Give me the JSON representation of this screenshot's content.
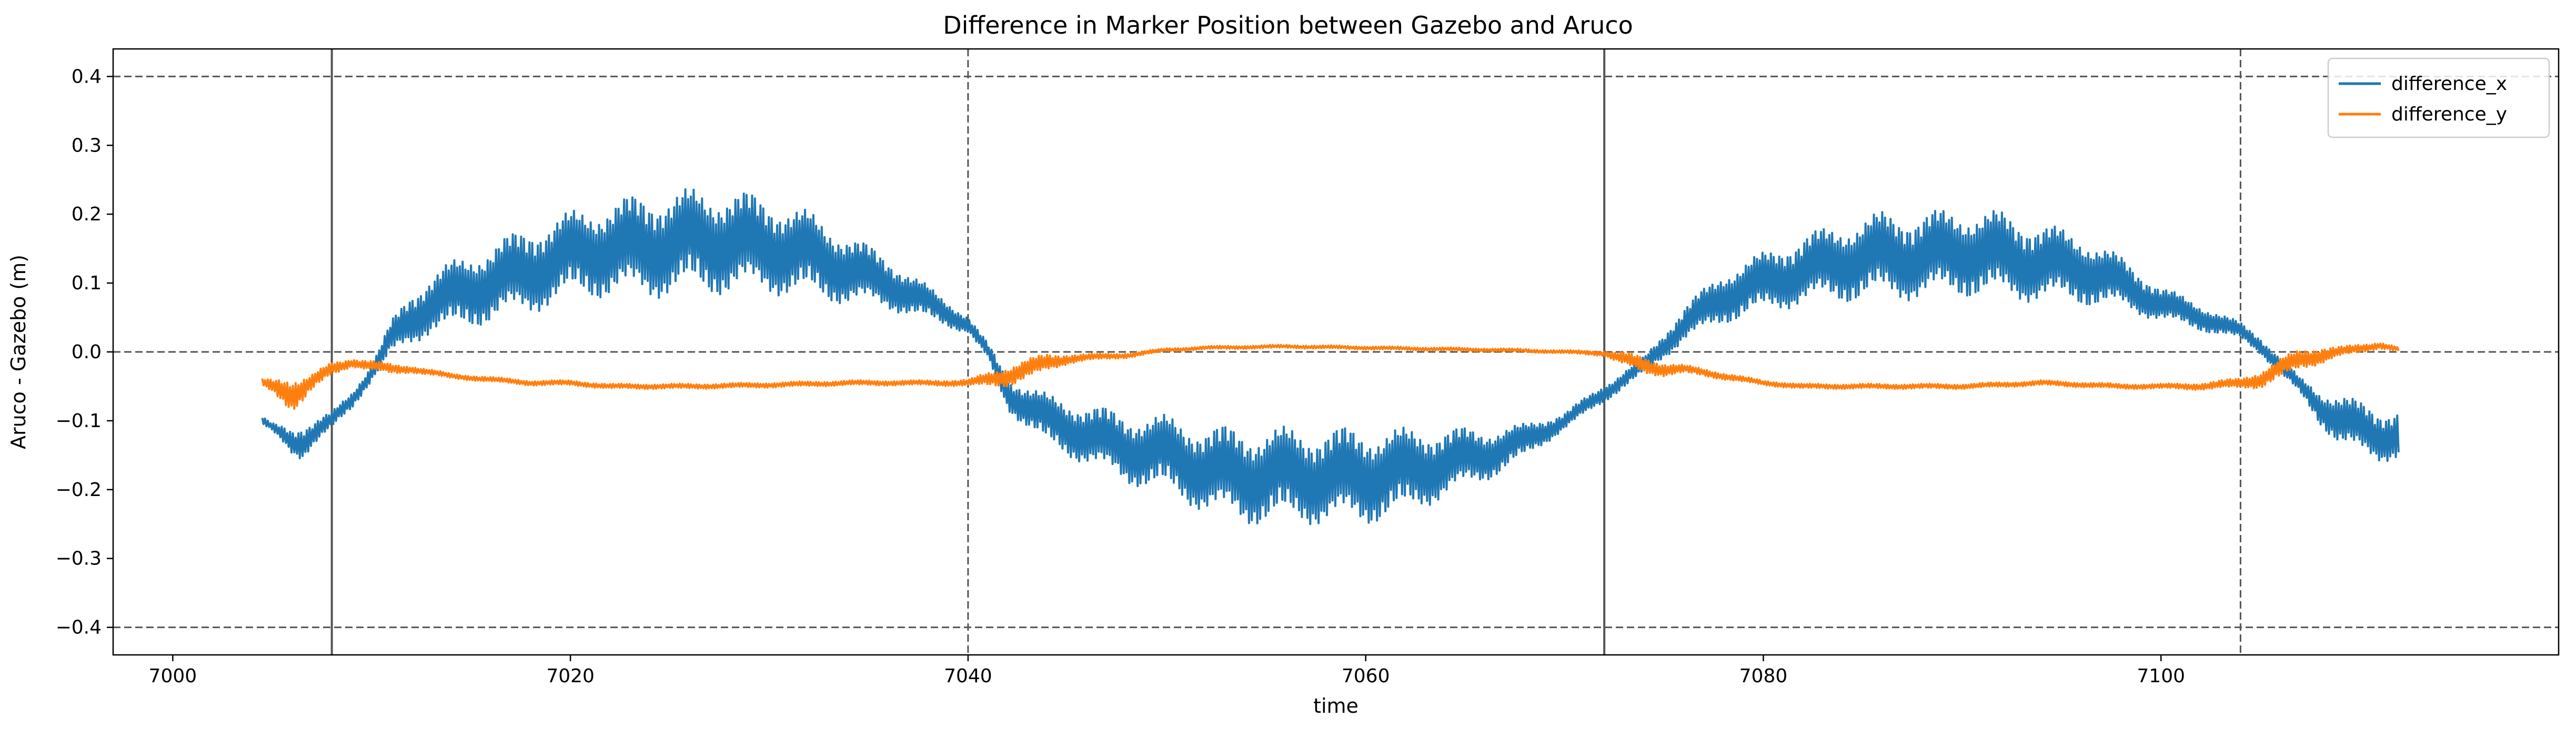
{
  "chart_data": {
    "type": "line",
    "title": "Difference in Marker Position between Gazebo and Aruco",
    "xlabel": "time",
    "ylabel": "Aruco - Gazebo (m)",
    "xlim": [
      6997,
      7120
    ],
    "ylim": [
      -0.44,
      0.44
    ],
    "xticks": [
      7000,
      7020,
      7040,
      7060,
      7080,
      7100
    ],
    "yticks": [
      -0.4,
      -0.3,
      -0.2,
      -0.1,
      0.0,
      0.1,
      0.2,
      0.3,
      0.4
    ],
    "ytick_labels": [
      "−0.4",
      "−0.3",
      "−0.2",
      "−0.1",
      "0.0",
      "0.1",
      "0.2",
      "0.3",
      "0.4"
    ],
    "legend_position": "top-right",
    "grid": false,
    "reference_lines": {
      "horizontal_dashed": [
        0.4,
        0.0,
        -0.4
      ],
      "vertical_solid": [
        7008,
        7072
      ],
      "vertical_dashed": [
        7040,
        7104
      ]
    },
    "series": [
      {
        "name": "difference_x",
        "color": "#1f77b4",
        "x": [
          7004.5,
          7005,
          7005.5,
          7006,
          7006.5,
          7007,
          7008,
          7009,
          7010,
          7011,
          7012,
          7013,
          7014,
          7016,
          7018,
          7020,
          7022,
          7024,
          7026,
          7028,
          7030,
          7032,
          7034,
          7036,
          7038,
          7040,
          7041,
          7042,
          7044,
          7046,
          7048,
          7050,
          7052,
          7054,
          7056,
          7058,
          7060,
          7062,
          7064,
          7066,
          7068,
          7070,
          7072,
          7074,
          7076,
          7078,
          7080,
          7082,
          7084,
          7086,
          7088,
          7090,
          7092,
          7094,
          7096,
          7098,
          7100,
          7102,
          7104,
          7105,
          7106,
          7107,
          7108,
          7109,
          7110,
          7111,
          7112
        ],
        "y": [
          -0.1,
          -0.11,
          -0.12,
          -0.13,
          -0.13,
          -0.12,
          -0.1,
          -0.07,
          -0.03,
          0.02,
          0.05,
          0.07,
          0.08,
          0.1,
          0.12,
          0.14,
          0.15,
          0.155,
          0.16,
          0.16,
          0.155,
          0.14,
          0.12,
          0.1,
          0.07,
          0.04,
          0.0,
          -0.06,
          -0.1,
          -0.12,
          -0.14,
          -0.15,
          -0.17,
          -0.18,
          -0.18,
          -0.18,
          -0.18,
          -0.175,
          -0.16,
          -0.15,
          -0.13,
          -0.1,
          -0.06,
          -0.02,
          0.04,
          0.08,
          0.1,
          0.12,
          0.13,
          0.14,
          0.14,
          0.145,
          0.14,
          0.13,
          0.12,
          0.1,
          0.07,
          0.05,
          0.03,
          0.01,
          -0.02,
          -0.05,
          -0.08,
          -0.1,
          -0.11,
          -0.12,
          -0.12
        ],
        "noise_amplitude": [
          0.005,
          0.005,
          0.01,
          0.015,
          0.02,
          0.015,
          0.01,
          0.01,
          0.01,
          0.02,
          0.03,
          0.035,
          0.04,
          0.045,
          0.05,
          0.05,
          0.055,
          0.06,
          0.06,
          0.06,
          0.055,
          0.05,
          0.04,
          0.03,
          0.02,
          0.01,
          0.01,
          0.02,
          0.03,
          0.035,
          0.04,
          0.045,
          0.05,
          0.055,
          0.055,
          0.055,
          0.055,
          0.05,
          0.04,
          0.03,
          0.02,
          0.01,
          0.01,
          0.01,
          0.02,
          0.03,
          0.035,
          0.04,
          0.045,
          0.05,
          0.05,
          0.05,
          0.05,
          0.045,
          0.04,
          0.03,
          0.02,
          0.015,
          0.01,
          0.01,
          0.01,
          0.01,
          0.02,
          0.03,
          0.03,
          0.03,
          0.03
        ]
      },
      {
        "name": "difference_y",
        "color": "#ff7f0e",
        "x": [
          7004.5,
          7005,
          7005.5,
          7006,
          7006.5,
          7007,
          7008,
          7009,
          7010,
          7011,
          7012,
          7014,
          7016,
          7018,
          7020,
          7022,
          7026,
          7030,
          7034,
          7038,
          7040,
          7041,
          7042,
          7043,
          7044,
          7045,
          7046,
          7048,
          7050,
          7052,
          7056,
          7060,
          7064,
          7068,
          7070,
          7072,
          7073,
          7074,
          7075,
          7076,
          7078,
          7080,
          7082,
          7086,
          7090,
          7094,
          7098,
          7100,
          7102,
          7104,
          7105,
          7106,
          7107,
          7108,
          7109,
          7110,
          7111,
          7112
        ],
        "y": [
          -0.045,
          -0.05,
          -0.055,
          -0.06,
          -0.055,
          -0.045,
          -0.025,
          -0.015,
          -0.02,
          -0.025,
          -0.025,
          -0.035,
          -0.04,
          -0.045,
          -0.045,
          -0.05,
          -0.05,
          -0.048,
          -0.045,
          -0.045,
          -0.045,
          -0.04,
          -0.035,
          -0.025,
          -0.015,
          -0.01,
          -0.008,
          -0.005,
          0.003,
          0.006,
          0.008,
          0.006,
          0.004,
          0.002,
          0.0,
          -0.002,
          -0.01,
          -0.02,
          -0.025,
          -0.025,
          -0.035,
          -0.045,
          -0.05,
          -0.05,
          -0.05,
          -0.045,
          -0.05,
          -0.05,
          -0.05,
          -0.045,
          -0.04,
          -0.025,
          -0.01,
          -0.005,
          0.0,
          0.005,
          0.01,
          0.003
        ],
        "noise_amplitude": [
          0.005,
          0.008,
          0.015,
          0.02,
          0.015,
          0.01,
          0.008,
          0.005,
          0.006,
          0.006,
          0.004,
          0.003,
          0.003,
          0.003,
          0.003,
          0.003,
          0.003,
          0.003,
          0.003,
          0.003,
          0.004,
          0.008,
          0.012,
          0.012,
          0.01,
          0.006,
          0.004,
          0.003,
          0.002,
          0.002,
          0.002,
          0.002,
          0.002,
          0.002,
          0.002,
          0.003,
          0.008,
          0.01,
          0.008,
          0.005,
          0.004,
          0.003,
          0.003,
          0.003,
          0.003,
          0.003,
          0.003,
          0.003,
          0.004,
          0.006,
          0.01,
          0.012,
          0.012,
          0.01,
          0.006,
          0.005,
          0.004,
          0.003
        ]
      }
    ]
  }
}
